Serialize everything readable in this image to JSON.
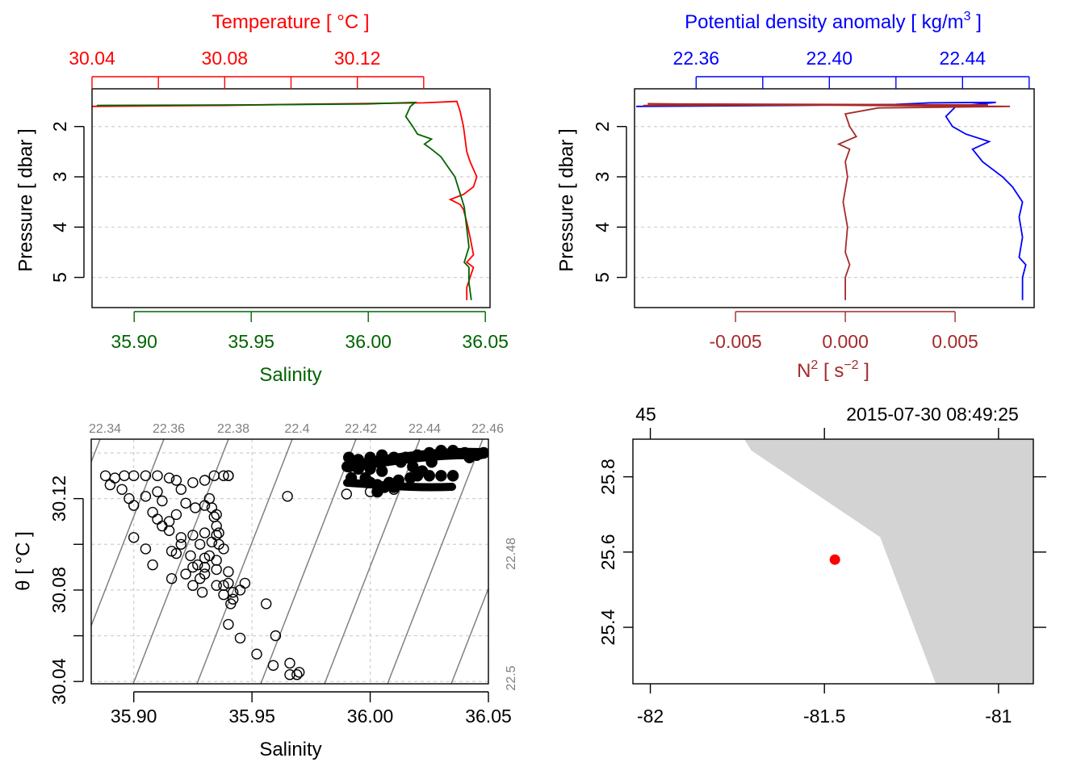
{
  "colors": {
    "temperature": "#ff0000",
    "salinity": "#006400",
    "density": "#0000ff",
    "n2": "#a52a2a",
    "land": "#d3d3d3",
    "station": "#ff0000",
    "isopycnal": "#808080",
    "grid": "#cfcfcf"
  },
  "chart_data": [
    {
      "id": "profile-ts",
      "type": "line",
      "top_axis": {
        "label": "Temperature [ °C ]",
        "ticks": [
          "30.04",
          "30.08",
          "30.12"
        ],
        "range": [
          30.04,
          30.16
        ],
        "tick_values": [
          30.04,
          30.06,
          30.08,
          30.1,
          30.12,
          30.14
        ]
      },
      "bottom_axis": {
        "label": "Salinity",
        "ticks": [
          "35.90",
          "35.95",
          "36.00",
          "36.05"
        ],
        "range": [
          35.882,
          36.052
        ]
      },
      "y_axis": {
        "label": "Pressure [ dbar ]",
        "ticks": [
          "2",
          "3",
          "4",
          "5"
        ],
        "range": [
          5.6,
          1.25
        ],
        "reversed": true
      },
      "series": [
        {
          "name": "Temperature",
          "points": [
            [
              30.04,
              1.6
            ],
            [
              30.08,
              1.58
            ],
            [
              30.1,
              1.56
            ],
            [
              30.14,
              1.53
            ],
            [
              30.15,
              1.5
            ],
            [
              30.151,
              1.7
            ],
            [
              30.152,
              2.0
            ],
            [
              30.153,
              2.5
            ],
            [
              30.154,
              2.7
            ],
            [
              30.156,
              3.0
            ],
            [
              30.155,
              3.2
            ],
            [
              30.152,
              3.35
            ],
            [
              30.148,
              3.45
            ],
            [
              30.151,
              3.55
            ],
            [
              30.152,
              3.65
            ],
            [
              30.153,
              3.9
            ],
            [
              30.154,
              4.2
            ],
            [
              30.155,
              4.55
            ],
            [
              30.153,
              4.7
            ],
            [
              30.155,
              4.8
            ],
            [
              30.154,
              5.0
            ],
            [
              30.153,
              5.2
            ],
            [
              30.153,
              5.45
            ]
          ]
        },
        {
          "name": "Salinity",
          "points": [
            [
              35.884,
              1.58
            ],
            [
              35.95,
              1.57
            ],
            [
              36.0,
              1.55
            ],
            [
              36.02,
              1.52
            ],
            [
              36.018,
              1.6
            ],
            [
              36.016,
              1.8
            ],
            [
              36.019,
              2.0
            ],
            [
              36.021,
              2.15
            ],
            [
              36.027,
              2.25
            ],
            [
              36.024,
              2.35
            ],
            [
              36.027,
              2.45
            ],
            [
              36.031,
              2.6
            ],
            [
              36.034,
              2.8
            ],
            [
              36.037,
              3.0
            ],
            [
              36.039,
              3.3
            ],
            [
              36.041,
              3.6
            ],
            [
              36.042,
              4.0
            ],
            [
              36.043,
              4.4
            ],
            [
              36.041,
              4.7
            ],
            [
              36.043,
              4.8
            ],
            [
              36.043,
              5.1
            ],
            [
              36.044,
              5.45
            ]
          ]
        }
      ]
    },
    {
      "id": "profile-density",
      "type": "line",
      "top_axis": {
        "label": "Potential density anomaly [ kg/m",
        "label_sup": "3",
        "label_end": " ]",
        "ticks": [
          "22.36",
          "22.40",
          "22.44"
        ],
        "range": [
          22.3415,
          22.4615
        ],
        "tick_values": [
          22.36,
          22.38,
          22.4,
          22.42,
          22.44,
          22.46
        ]
      },
      "bottom_axis": {
        "label": "N",
        "label_sup": "2",
        "label_mid": " [ s",
        "label_sup2": "−2",
        "label_end": " ]",
        "ticks": [
          "-0.005",
          "0.000",
          "0.005"
        ],
        "range": [
          -0.0096,
          0.0086
        ]
      },
      "y_axis": {
        "label": "Pressure [ dbar ]",
        "ticks": [
          "2",
          "3",
          "4",
          "5"
        ],
        "range": [
          5.6,
          1.25
        ],
        "reversed": true
      },
      "series": [
        {
          "name": "Potential density anomaly",
          "points": [
            [
              22.342,
              1.6
            ],
            [
              22.39,
              1.58
            ],
            [
              22.42,
              1.56
            ],
            [
              22.43,
              1.53
            ],
            [
              22.45,
              1.52
            ],
            [
              22.438,
              1.6
            ],
            [
              22.435,
              1.8
            ],
            [
              22.437,
              2.0
            ],
            [
              22.441,
              2.15
            ],
            [
              22.448,
              2.3
            ],
            [
              22.443,
              2.45
            ],
            [
              22.446,
              2.7
            ],
            [
              22.452,
              3.0
            ],
            [
              22.455,
              3.2
            ],
            [
              22.458,
              3.5
            ],
            [
              22.457,
              3.8
            ],
            [
              22.458,
              4.2
            ],
            [
              22.457,
              4.6
            ],
            [
              22.459,
              4.75
            ],
            [
              22.458,
              5.0
            ],
            [
              22.458,
              5.45
            ]
          ]
        },
        {
          "name": "N2",
          "points": [
            [
              -0.0092,
              1.58
            ],
            [
              0.0065,
              1.57
            ],
            [
              -0.009,
              1.55
            ],
            [
              0.0075,
              1.6
            ],
            [
              0.0015,
              1.63
            ],
            [
              0.0,
              1.75
            ],
            [
              0.0002,
              2.0
            ],
            [
              0.0005,
              2.2
            ],
            [
              -0.0003,
              2.35
            ],
            [
              0.0002,
              2.45
            ],
            [
              0.0,
              2.7
            ],
            [
              0.0001,
              3.0
            ],
            [
              -0.0001,
              3.5
            ],
            [
              0.0001,
              4.0
            ],
            [
              0.0,
              4.5
            ],
            [
              0.0002,
              4.75
            ],
            [
              0.0,
              5.0
            ],
            [
              0.0,
              5.45
            ]
          ]
        }
      ]
    },
    {
      "id": "ts-diagram",
      "type": "scatter",
      "xlabel": "Salinity",
      "ylabel": "θ [ °C ]",
      "x_ticks": [
        "35.90",
        "35.95",
        "36.00",
        "36.05"
      ],
      "xlim": [
        35.882,
        36.05
      ],
      "y_ticks": [
        "30.04",
        "30.08",
        "30.12"
      ],
      "ylim": [
        30.039,
        30.146
      ],
      "isopycnal_labels": [
        "22.34",
        "22.36",
        "22.38",
        "22.4",
        "22.42",
        "22.44",
        "22.46",
        "22.48",
        "22.5"
      ],
      "isopycnal_values": [
        22.34,
        22.36,
        22.38,
        22.4,
        22.42,
        22.44,
        22.46,
        22.48,
        22.5
      ],
      "open_points": [
        [
          35.888,
          30.13
        ],
        [
          35.892,
          30.129
        ],
        [
          35.896,
          30.13
        ],
        [
          35.9,
          30.13
        ],
        [
          35.905,
          30.13
        ],
        [
          35.91,
          30.13
        ],
        [
          35.915,
          30.129
        ],
        [
          35.918,
          30.128
        ],
        [
          35.92,
          30.124
        ],
        [
          35.925,
          30.127
        ],
        [
          35.93,
          30.128
        ],
        [
          35.934,
          30.13
        ],
        [
          35.938,
          30.13
        ],
        [
          35.94,
          30.13
        ],
        [
          35.89,
          30.126
        ],
        [
          35.895,
          30.124
        ],
        [
          35.898,
          30.12
        ],
        [
          35.9,
          30.117
        ],
        [
          35.905,
          30.121
        ],
        [
          35.91,
          30.123
        ],
        [
          35.912,
          30.119
        ],
        [
          35.908,
          30.114
        ],
        [
          35.91,
          30.111
        ],
        [
          35.915,
          30.11
        ],
        [
          35.918,
          30.113
        ],
        [
          35.922,
          30.118
        ],
        [
          35.926,
          30.116
        ],
        [
          35.93,
          30.117
        ],
        [
          35.933,
          30.116
        ],
        [
          35.934,
          30.112
        ],
        [
          35.935,
          30.108
        ],
        [
          35.935,
          30.104
        ],
        [
          35.933,
          30.101
        ],
        [
          35.93,
          30.105
        ],
        [
          35.928,
          30.1
        ],
        [
          35.925,
          30.104
        ],
        [
          35.92,
          30.103
        ],
        [
          35.915,
          30.106
        ],
        [
          35.912,
          30.108
        ],
        [
          35.918,
          30.096
        ],
        [
          35.924,
          30.095
        ],
        [
          35.93,
          30.094
        ],
        [
          35.936,
          30.1
        ],
        [
          35.927,
          30.091
        ],
        [
          35.932,
          30.095
        ],
        [
          35.925,
          30.09
        ],
        [
          35.93,
          30.09
        ],
        [
          35.935,
          30.093
        ],
        [
          35.93,
          30.087
        ],
        [
          35.928,
          30.085
        ],
        [
          35.935,
          30.082
        ],
        [
          35.938,
          30.078
        ],
        [
          35.941,
          30.074
        ],
        [
          35.942,
          30.079
        ],
        [
          35.942,
          30.076
        ],
        [
          35.938,
          30.082
        ],
        [
          35.947,
          30.083
        ],
        [
          35.945,
          30.08
        ],
        [
          35.925,
          30.082
        ],
        [
          35.916,
          30.085
        ],
        [
          35.929,
          30.079
        ],
        [
          35.956,
          30.074
        ],
        [
          35.94,
          30.065
        ],
        [
          35.945,
          30.059
        ],
        [
          35.96,
          30.06
        ],
        [
          35.952,
          30.052
        ],
        [
          35.959,
          30.047
        ],
        [
          35.966,
          30.048
        ],
        [
          35.966,
          30.043
        ],
        [
          35.969,
          30.043
        ],
        [
          35.97,
          30.044
        ],
        [
          35.965,
          30.121
        ],
        [
          35.94,
          30.083
        ],
        [
          35.935,
          30.089
        ],
        [
          35.905,
          30.098
        ],
        [
          35.908,
          30.091
        ],
        [
          35.916,
          30.097
        ],
        [
          35.922,
          30.087
        ],
        [
          35.9,
          30.103
        ],
        [
          35.92,
          30.1
        ],
        [
          35.94,
          30.088
        ],
        [
          35.938,
          30.098
        ],
        [
          35.935,
          30.113
        ],
        [
          35.932,
          30.12
        ],
        [
          35.94,
          30.13
        ],
        [
          35.936,
          30.105
        ],
        [
          35.99,
          30.122
        ],
        [
          36.0,
          30.123
        ],
        [
          36.01,
          30.124
        ]
      ],
      "filled_cluster": [
        [
          35.991,
          30.138
        ],
        [
          35.995,
          30.137
        ],
        [
          36.0,
          30.138
        ],
        [
          36.005,
          30.139
        ],
        [
          36.01,
          30.138
        ],
        [
          36.015,
          30.138
        ],
        [
          36.02,
          30.139
        ],
        [
          36.025,
          30.14
        ],
        [
          36.03,
          30.141
        ],
        [
          36.035,
          30.141
        ],
        [
          36.04,
          30.14
        ],
        [
          36.042,
          30.138
        ],
        [
          36.045,
          30.139
        ],
        [
          36.048,
          30.14
        ],
        [
          35.991,
          30.134
        ],
        [
          35.995,
          30.133
        ],
        [
          36.0,
          30.133
        ],
        [
          36.005,
          30.132
        ],
        [
          35.992,
          30.129
        ],
        [
          35.998,
          30.129
        ],
        [
          36.0,
          30.127
        ],
        [
          36.003,
          30.126
        ],
        [
          36.008,
          30.127
        ],
        [
          36.012,
          30.128
        ],
        [
          36.017,
          30.129
        ],
        [
          36.02,
          30.13
        ],
        [
          36.025,
          30.13
        ],
        [
          36.03,
          30.13
        ],
        [
          36.035,
          30.13
        ],
        [
          36.018,
          30.134
        ],
        [
          36.013,
          30.136
        ],
        [
          36.002,
          30.136
        ],
        [
          36.022,
          30.132
        ],
        [
          36.026,
          30.136
        ],
        [
          36.003,
          30.123
        ],
        [
          36.006,
          30.125
        ],
        [
          36.01,
          30.125
        ]
      ]
    },
    {
      "id": "station-map",
      "type": "scatter",
      "top_labels": [
        "45",
        "2015-07-30 08:49:25"
      ],
      "x_ticks": [
        "-82",
        "-81.5",
        "-81"
      ],
      "xlim": [
        -82.05,
        -80.9
      ],
      "y_ticks": [
        "25.4",
        "25.6",
        "25.8"
      ],
      "ylim": [
        25.25,
        25.9
      ],
      "land_polygon": [
        [
          -81.73,
          25.9
        ],
        [
          -80.9,
          25.9
        ],
        [
          -80.9,
          25.25
        ],
        [
          -81.18,
          25.25
        ],
        [
          -81.34,
          25.64
        ],
        [
          -81.71,
          25.87
        ]
      ],
      "station": [
        -81.47,
        25.58
      ]
    }
  ]
}
